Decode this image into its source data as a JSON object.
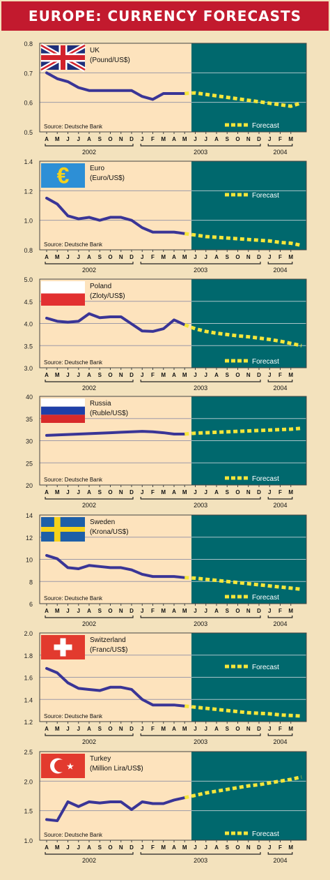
{
  "title": "EUROPE: CURRENCY FORECASTS",
  "source": "Source: Deutsche Bank",
  "forecast_label": "Forecast",
  "months": [
    "A",
    "M",
    "J",
    "J",
    "A",
    "S",
    "O",
    "N",
    "D",
    "J",
    "F",
    "M",
    "A",
    "M",
    "J",
    "J",
    "A",
    "S",
    "O",
    "N",
    "D",
    "J",
    "F",
    "M"
  ],
  "year_labels": [
    "2002",
    "2003",
    "2004"
  ],
  "colors": {
    "frame": "#f3e2bd",
    "title_bar": "#c21a2e",
    "history_bg": "#fde3bd",
    "forecast_bg": "#00686d",
    "actual_line": "#3a3596",
    "forecast_line": "#f5e63a"
  },
  "chart_data": [
    {
      "type": "line",
      "name": "UK",
      "unit": "(Pound/US$)",
      "flag": "uk-flag",
      "ylim": [
        0.5,
        0.8
      ],
      "yticks": [
        "0.8",
        "0.7",
        "0.6",
        "0.5"
      ],
      "actual": [
        0.7,
        0.68,
        0.67,
        0.65,
        0.64,
        0.64,
        0.64,
        0.64,
        0.64,
        0.62,
        0.61,
        0.63,
        0.63,
        0.63
      ],
      "forecast": [
        0.63,
        0.632,
        0.627,
        0.622,
        0.617,
        0.612,
        0.607,
        0.602,
        0.597,
        0.592,
        0.587,
        0.598
      ]
    },
    {
      "type": "line",
      "name": "Euro",
      "unit": "(Euro/US$)",
      "flag": "eu-flag",
      "ylim": [
        0.8,
        1.4
      ],
      "yticks": [
        "1.4",
        "1.2",
        "1.0",
        "0.8"
      ],
      "actual": [
        1.15,
        1.11,
        1.03,
        1.01,
        1.02,
        1.0,
        1.02,
        1.02,
        1.0,
        0.95,
        0.92,
        0.92,
        0.92,
        0.91
      ],
      "forecast": [
        0.91,
        0.9,
        0.89,
        0.885,
        0.88,
        0.875,
        0.87,
        0.865,
        0.86,
        0.85,
        0.845,
        0.83
      ]
    },
    {
      "type": "line",
      "name": "Poland",
      "unit": "(Zloty/US$)",
      "flag": "poland-flag",
      "ylim": [
        3.0,
        5.0
      ],
      "yticks": [
        "5.0",
        "4.5",
        "4.0",
        "3.5",
        "3.0"
      ],
      "actual": [
        4.12,
        4.05,
        4.03,
        4.05,
        4.22,
        4.13,
        4.15,
        4.15,
        3.99,
        3.83,
        3.82,
        3.88,
        4.08,
        3.97
      ],
      "forecast": [
        3.97,
        3.88,
        3.82,
        3.78,
        3.75,
        3.72,
        3.7,
        3.67,
        3.64,
        3.6,
        3.55,
        3.5
      ]
    },
    {
      "type": "line",
      "name": "Russia",
      "unit": "(Ruble/US$)",
      "flag": "russia-flag",
      "ylim": [
        20,
        40
      ],
      "yticks": [
        "40",
        "35",
        "30",
        "25",
        "20"
      ],
      "actual": [
        31.2,
        31.3,
        31.4,
        31.5,
        31.6,
        31.7,
        31.8,
        31.9,
        32.0,
        32.1,
        32.0,
        31.8,
        31.5,
        31.5
      ],
      "forecast": [
        31.5,
        31.7,
        31.8,
        31.9,
        32.0,
        32.1,
        32.2,
        32.3,
        32.4,
        32.5,
        32.6,
        32.8
      ]
    },
    {
      "type": "line",
      "name": "Sweden",
      "unit": "(Krona/US$)",
      "flag": "sweden-flag",
      "ylim": [
        6,
        14
      ],
      "yticks": [
        "14",
        "12",
        "10",
        "8",
        "6"
      ],
      "actual": [
        10.35,
        10.05,
        9.25,
        9.15,
        9.45,
        9.35,
        9.25,
        9.25,
        9.05,
        8.65,
        8.45,
        8.45,
        8.45,
        8.35
      ],
      "forecast": [
        8.35,
        8.3,
        8.2,
        8.1,
        8.0,
        7.9,
        7.8,
        7.7,
        7.6,
        7.5,
        7.4,
        7.3
      ]
    },
    {
      "type": "line",
      "name": "Switzerland",
      "unit": "(Franc/US$)",
      "flag": "switzerland-flag",
      "ylim": [
        1.2,
        2.0
      ],
      "yticks": [
        "2.0",
        "1.8",
        "1.6",
        "1.4",
        "1.2"
      ],
      "actual": [
        1.68,
        1.64,
        1.55,
        1.5,
        1.49,
        1.48,
        1.51,
        1.51,
        1.49,
        1.4,
        1.35,
        1.35,
        1.35,
        1.34
      ],
      "forecast": [
        1.34,
        1.33,
        1.32,
        1.31,
        1.3,
        1.29,
        1.28,
        1.275,
        1.27,
        1.26,
        1.255,
        1.25
      ]
    },
    {
      "type": "line",
      "name": "Turkey",
      "unit": "(Million Lira/US$)",
      "flag": "turkey-flag",
      "ylim": [
        1.0,
        2.5
      ],
      "yticks": [
        "2.5",
        "2.0",
        "1.5",
        "1.0"
      ],
      "actual": [
        1.35,
        1.33,
        1.65,
        1.57,
        1.65,
        1.63,
        1.65,
        1.65,
        1.52,
        1.65,
        1.62,
        1.62,
        1.68,
        1.72
      ],
      "forecast": [
        1.72,
        1.76,
        1.8,
        1.83,
        1.86,
        1.89,
        1.92,
        1.94,
        1.97,
        2.0,
        2.03,
        2.07
      ]
    }
  ]
}
